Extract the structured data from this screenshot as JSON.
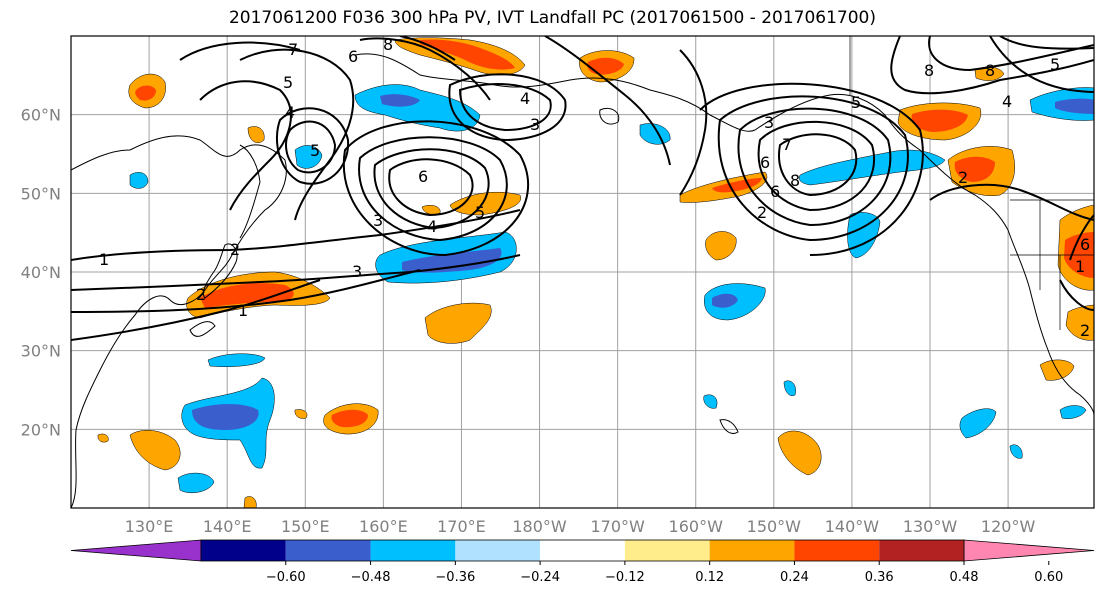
{
  "title": "2017061200 F036 300 hPa PV, IVT Landfall PC (2017061500 - 2017061700)",
  "map": {
    "lat_labels": [
      "60°N",
      "50°N",
      "40°N",
      "30°N",
      "20°N"
    ],
    "lat_values": [
      60,
      50,
      40,
      30,
      20
    ],
    "lon_labels": [
      "130°E",
      "140°E",
      "150°E",
      "160°E",
      "170°E",
      "180°W",
      "170°W",
      "160°W",
      "150°W",
      "140°W",
      "130°W",
      "120°W"
    ],
    "lon_values": [
      130,
      140,
      150,
      160,
      170,
      180,
      190,
      200,
      210,
      220,
      230,
      240
    ],
    "lat_range": [
      10,
      70
    ],
    "lon_range": [
      120,
      251
    ],
    "grid": true
  },
  "colorbar": {
    "labels": [
      "−0.60",
      "−0.48",
      "−0.36",
      "−0.24",
      "−0.12",
      "0.12",
      "0.24",
      "0.36",
      "0.48",
      "0.60"
    ],
    "colors": [
      "#9932cc",
      "#00008b",
      "#3a5fcd",
      "#00bfff",
      "#b0e2ff",
      "#ffffff",
      "#ffec8b",
      "#ffa500",
      "#ff4500",
      "#b22222",
      "#ff86b0"
    ]
  },
  "contour_labels": [
    "8",
    "6",
    "7",
    "5",
    "4",
    "3",
    "2",
    "1",
    "8",
    "6",
    "5",
    "4",
    "3",
    "2",
    "1",
    "3",
    "4",
    "5",
    "6",
    "8",
    "3",
    "7",
    "6",
    "5",
    "2",
    "8",
    "2",
    "4",
    "5",
    "2",
    "1",
    "6"
  ],
  "colors": {
    "neg_strong": "#3a5fcd",
    "neg": "#00bfff",
    "pos": "#ffa500",
    "pos_strong": "#ff4500"
  }
}
